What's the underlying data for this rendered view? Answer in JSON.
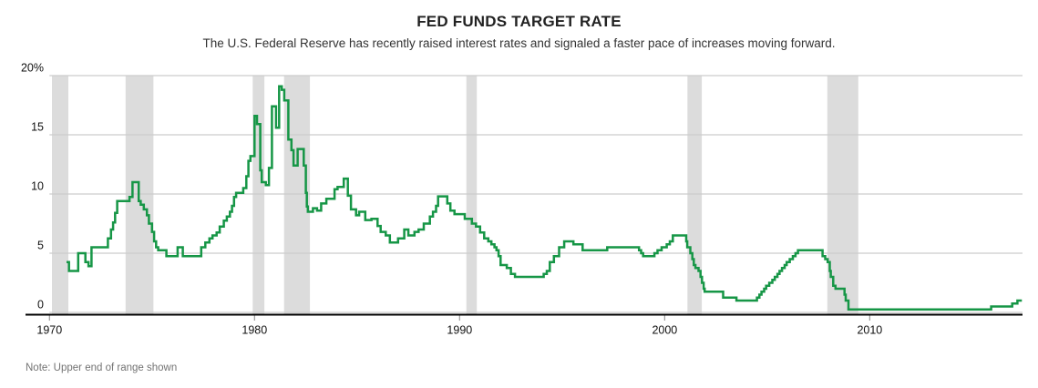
{
  "header": {
    "title": "FED FUNDS TARGET RATE",
    "subtitle": "The U.S. Federal Reserve has recently raised interest rates and signaled a faster pace of increases moving forward."
  },
  "note": "Note: Upper end of range shown",
  "colors": {
    "line": "#169646",
    "recession_band": "#dcdcdc",
    "gridline": "#cccccc",
    "axis": "#000000",
    "tick_mark": "#999999",
    "tick_label": "#111111",
    "note_text": "#737373"
  },
  "chart_data": {
    "type": "line",
    "step": true,
    "title": "FED FUNDS TARGET RATE",
    "xlabel": "",
    "ylabel": "percent",
    "xlim": [
      1970,
      2017.45
    ],
    "ylim": [
      0,
      20
    ],
    "grid": true,
    "legend": "none",
    "y_ticks": [
      {
        "value": 0,
        "label": "0"
      },
      {
        "value": 5,
        "label": "5"
      },
      {
        "value": 10,
        "label": "10"
      },
      {
        "value": 15,
        "label": "15"
      },
      {
        "value": 20,
        "label": "20%"
      }
    ],
    "x_ticks": [
      {
        "value": 1970,
        "label": "1970"
      },
      {
        "value": 1980,
        "label": "1980"
      },
      {
        "value": 1990,
        "label": "1990"
      },
      {
        "value": 2000,
        "label": "2000"
      },
      {
        "value": 2010,
        "label": "2010"
      }
    ],
    "recessions": [
      [
        1970.12,
        1970.92
      ],
      [
        1973.71,
        1975.07
      ],
      [
        1979.91,
        1980.48
      ],
      [
        1981.44,
        1982.7
      ],
      [
        1990.33,
        1990.84
      ],
      [
        2001.11,
        2001.81
      ],
      [
        2007.93,
        2009.44
      ]
    ],
    "series": [
      {
        "name": "Fed funds target rate (upper end of range)",
        "end_x": 2017.42,
        "points": [
          [
            1970.83,
            4.25
          ],
          [
            1970.95,
            3.5
          ],
          [
            1971.4,
            5.0
          ],
          [
            1971.75,
            4.25
          ],
          [
            1971.9,
            3.9
          ],
          [
            1972.05,
            5.5
          ],
          [
            1972.85,
            6.25
          ],
          [
            1973.0,
            7.0
          ],
          [
            1973.1,
            7.6
          ],
          [
            1973.2,
            8.4
          ],
          [
            1973.3,
            9.4
          ],
          [
            1973.9,
            9.75
          ],
          [
            1974.05,
            11.0
          ],
          [
            1974.35,
            9.4
          ],
          [
            1974.45,
            9.1
          ],
          [
            1974.6,
            8.7
          ],
          [
            1974.75,
            8.2
          ],
          [
            1974.85,
            7.5
          ],
          [
            1975.0,
            6.8
          ],
          [
            1975.1,
            6.0
          ],
          [
            1975.2,
            5.5
          ],
          [
            1975.3,
            5.25
          ],
          [
            1975.7,
            4.75
          ],
          [
            1976.25,
            5.5
          ],
          [
            1976.5,
            4.75
          ],
          [
            1977.4,
            5.5
          ],
          [
            1977.6,
            5.9
          ],
          [
            1977.8,
            6.25
          ],
          [
            1977.95,
            6.5
          ],
          [
            1978.15,
            6.75
          ],
          [
            1978.3,
            7.25
          ],
          [
            1978.5,
            7.75
          ],
          [
            1978.65,
            8.1
          ],
          [
            1978.8,
            8.5
          ],
          [
            1978.9,
            9.0
          ],
          [
            1979.0,
            9.75
          ],
          [
            1979.1,
            10.1
          ],
          [
            1979.45,
            10.5
          ],
          [
            1979.6,
            11.5
          ],
          [
            1979.7,
            12.8
          ],
          [
            1979.8,
            13.2
          ],
          [
            1980.0,
            16.6
          ],
          [
            1980.12,
            15.9
          ],
          [
            1980.28,
            12.0
          ],
          [
            1980.35,
            11.0
          ],
          [
            1980.55,
            10.75
          ],
          [
            1980.7,
            12.2
          ],
          [
            1980.85,
            17.4
          ],
          [
            1981.05,
            15.6
          ],
          [
            1981.2,
            19.1
          ],
          [
            1981.33,
            18.8
          ],
          [
            1981.45,
            17.9
          ],
          [
            1981.65,
            14.6
          ],
          [
            1981.8,
            13.7
          ],
          [
            1981.9,
            12.4
          ],
          [
            1982.1,
            13.8
          ],
          [
            1982.4,
            12.4
          ],
          [
            1982.5,
            10.1
          ],
          [
            1982.55,
            8.95
          ],
          [
            1982.6,
            8.5
          ],
          [
            1982.85,
            8.8
          ],
          [
            1983.05,
            8.6
          ],
          [
            1983.25,
            9.2
          ],
          [
            1983.5,
            9.6
          ],
          [
            1983.9,
            10.4
          ],
          [
            1984.05,
            10.6
          ],
          [
            1984.35,
            11.3
          ],
          [
            1984.55,
            9.85
          ],
          [
            1984.7,
            8.7
          ],
          [
            1984.95,
            8.2
          ],
          [
            1985.1,
            8.5
          ],
          [
            1985.4,
            7.8
          ],
          [
            1985.7,
            7.9
          ],
          [
            1986.0,
            7.3
          ],
          [
            1986.15,
            6.8
          ],
          [
            1986.4,
            6.5
          ],
          [
            1986.6,
            5.9
          ],
          [
            1987.0,
            6.25
          ],
          [
            1987.3,
            7.0
          ],
          [
            1987.5,
            6.5
          ],
          [
            1987.8,
            6.8
          ],
          [
            1988.0,
            7.0
          ],
          [
            1988.25,
            7.5
          ],
          [
            1988.55,
            8.1
          ],
          [
            1988.7,
            8.5
          ],
          [
            1988.85,
            9.0
          ],
          [
            1988.95,
            9.8
          ],
          [
            1989.4,
            9.2
          ],
          [
            1989.55,
            8.6
          ],
          [
            1989.75,
            8.3
          ],
          [
            1990.25,
            7.9
          ],
          [
            1990.6,
            7.5
          ],
          [
            1990.8,
            7.25
          ],
          [
            1991.0,
            6.75
          ],
          [
            1991.2,
            6.25
          ],
          [
            1991.4,
            6.0
          ],
          [
            1991.55,
            5.75
          ],
          [
            1991.7,
            5.5
          ],
          [
            1991.8,
            5.25
          ],
          [
            1991.9,
            4.75
          ],
          [
            1992.0,
            4.0
          ],
          [
            1992.3,
            3.75
          ],
          [
            1992.5,
            3.25
          ],
          [
            1992.7,
            3.0
          ],
          [
            1994.1,
            3.25
          ],
          [
            1994.25,
            3.5
          ],
          [
            1994.4,
            4.25
          ],
          [
            1994.6,
            4.75
          ],
          [
            1994.85,
            5.5
          ],
          [
            1995.1,
            6.0
          ],
          [
            1995.55,
            5.75
          ],
          [
            1996.0,
            5.25
          ],
          [
            1997.2,
            5.5
          ],
          [
            1998.75,
            5.25
          ],
          [
            1998.85,
            5.0
          ],
          [
            1998.95,
            4.75
          ],
          [
            1999.5,
            5.0
          ],
          [
            1999.65,
            5.25
          ],
          [
            1999.85,
            5.5
          ],
          [
            2000.1,
            5.75
          ],
          [
            2000.25,
            6.0
          ],
          [
            2000.4,
            6.5
          ],
          [
            2001.05,
            6.0
          ],
          [
            2001.1,
            5.5
          ],
          [
            2001.25,
            5.0
          ],
          [
            2001.35,
            4.5
          ],
          [
            2001.42,
            4.0
          ],
          [
            2001.5,
            3.75
          ],
          [
            2001.65,
            3.5
          ],
          [
            2001.75,
            3.0
          ],
          [
            2001.82,
            2.5
          ],
          [
            2001.9,
            2.0
          ],
          [
            2001.95,
            1.75
          ],
          [
            2002.85,
            1.25
          ],
          [
            2003.5,
            1.0
          ],
          [
            2004.5,
            1.25
          ],
          [
            2004.62,
            1.5
          ],
          [
            2004.72,
            1.75
          ],
          [
            2004.85,
            2.0
          ],
          [
            2004.95,
            2.25
          ],
          [
            2005.1,
            2.5
          ],
          [
            2005.25,
            2.75
          ],
          [
            2005.37,
            3.0
          ],
          [
            2005.5,
            3.25
          ],
          [
            2005.6,
            3.5
          ],
          [
            2005.72,
            3.75
          ],
          [
            2005.85,
            4.0
          ],
          [
            2005.95,
            4.25
          ],
          [
            2006.1,
            4.5
          ],
          [
            2006.25,
            4.75
          ],
          [
            2006.38,
            5.0
          ],
          [
            2006.5,
            5.25
          ],
          [
            2007.7,
            4.75
          ],
          [
            2007.83,
            4.5
          ],
          [
            2007.95,
            4.25
          ],
          [
            2008.05,
            3.5
          ],
          [
            2008.1,
            3.0
          ],
          [
            2008.22,
            2.25
          ],
          [
            2008.33,
            2.0
          ],
          [
            2008.77,
            1.5
          ],
          [
            2008.83,
            1.0
          ],
          [
            2008.96,
            0.25
          ],
          [
            2015.92,
            0.5
          ],
          [
            2016.95,
            0.75
          ],
          [
            2017.2,
            1.0
          ]
        ]
      }
    ]
  }
}
